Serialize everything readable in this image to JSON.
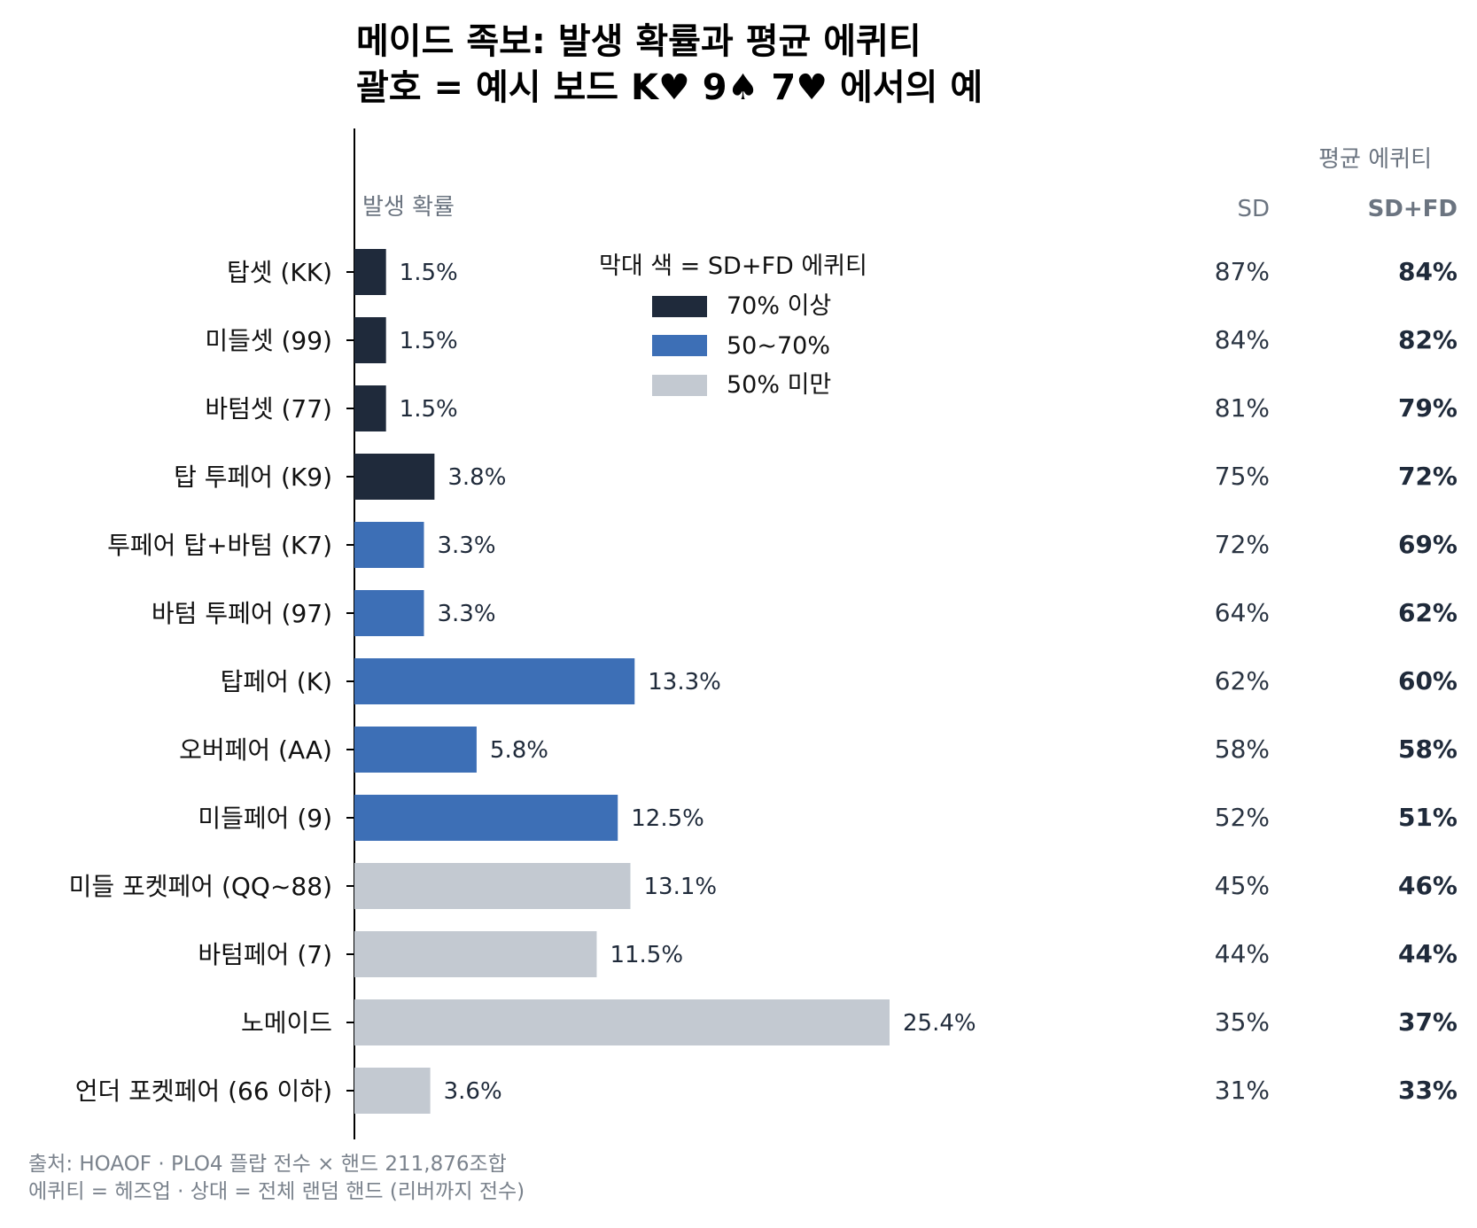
{
  "chart_data": {
    "type": "bar",
    "orientation": "horizontal",
    "title": "메이드 족보: 발생 확률과 평균 에퀴티",
    "subtitle": "괄호 = 예시 보드 K♥ 9♠ 7♥ 에서의 예",
    "xlabel": "발생 확률",
    "equity_header": "평균 에퀴티",
    "sd_header": "SD",
    "sdfd_header": "SD+FD",
    "categories": [
      "탑셋 (KK)",
      "미들셋 (99)",
      "바텀셋 (77)",
      "탑 투페어 (K9)",
      "투페어 탑+바텀 (K7)",
      "바텀 투페어 (97)",
      "탑페어 (K)",
      "오버페어 (AA)",
      "미들페어 (9)",
      "미들 포켓페어 (QQ~88)",
      "바텀페어 (7)",
      "노메이드",
      "언더 포켓페어 (66 이하)"
    ],
    "values": [
      1.5,
      1.5,
      1.5,
      3.8,
      3.3,
      3.3,
      13.3,
      5.8,
      12.5,
      13.1,
      11.5,
      25.4,
      3.6
    ],
    "value_labels": [
      "1.5%",
      "1.5%",
      "1.5%",
      "3.8%",
      "3.3%",
      "3.3%",
      "13.3%",
      "5.8%",
      "12.5%",
      "13.1%",
      "11.5%",
      "25.4%",
      "3.6%"
    ],
    "sd_equity": [
      "87%",
      "84%",
      "81%",
      "75%",
      "72%",
      "64%",
      "62%",
      "58%",
      "52%",
      "45%",
      "44%",
      "35%",
      "31%"
    ],
    "sdfd_equity": [
      "84%",
      "82%",
      "79%",
      "72%",
      "69%",
      "62%",
      "60%",
      "58%",
      "51%",
      "46%",
      "44%",
      "37%",
      "33%"
    ],
    "color_groups": [
      0,
      0,
      0,
      0,
      1,
      1,
      1,
      1,
      1,
      2,
      2,
      2,
      2
    ],
    "xlim": [
      0,
      30
    ],
    "grid": false,
    "legend": {
      "title": "막대 색 = SD+FD 에퀴티",
      "position": "top-center",
      "items": [
        {
          "label": "70% 이상",
          "color": "#1f2a3b"
        },
        {
          "label": "50~70%",
          "color": "#3d6fb6"
        },
        {
          "label": "50% 미만",
          "color": "#c3c9d1"
        }
      ]
    }
  },
  "footer": {
    "line1": "출처: HOAOF · PLO4 플랍 전수 × 핸드 211,876조합",
    "line2": "에퀴티 = 헤즈업 · 상대 = 전체 랜덤 핸드 (리버까지 전수)"
  }
}
